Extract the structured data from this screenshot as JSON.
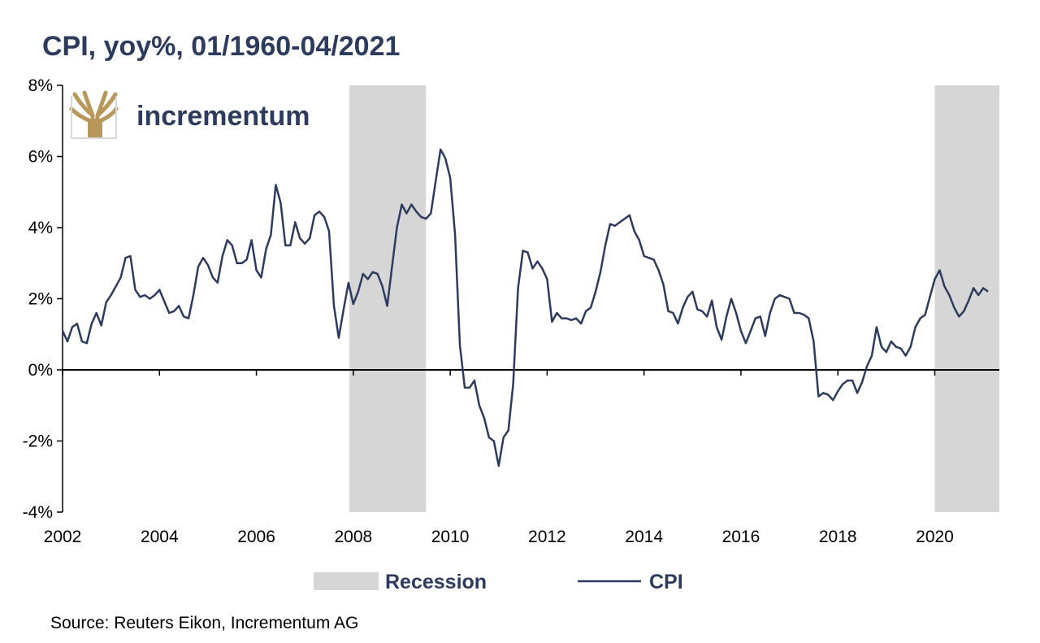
{
  "chart_data": {
    "type": "line",
    "title": "CPI, yoy%, 01/1960-04/2021",
    "xlabel": "",
    "ylabel": "",
    "xlim": [
      2002.0,
      2021.333
    ],
    "ylim": [
      -4,
      8
    ],
    "x_ticks": [
      2002,
      2004,
      2006,
      2008,
      2010,
      2012,
      2014,
      2016,
      2018,
      2020
    ],
    "y_ticks": [
      -4,
      -2,
      0,
      2,
      4,
      6,
      8
    ],
    "y_tick_labels": [
      "-4%",
      "-2%",
      "0%",
      "2%",
      "4%",
      "6%",
      "8%"
    ],
    "recessions": [
      {
        "start": 2007.917,
        "end": 2009.5
      },
      {
        "start": 2020.0,
        "end": 2021.333
      }
    ],
    "series": [
      {
        "name": "CPI",
        "color": "#2d3b5e",
        "points": [
          [
            2002.0,
            1.1
          ],
          [
            2002.1,
            0.8
          ],
          [
            2002.2,
            1.2
          ],
          [
            2002.3,
            1.3
          ],
          [
            2002.4,
            0.8
          ],
          [
            2002.5,
            0.75
          ],
          [
            2002.6,
            1.3
          ],
          [
            2002.7,
            1.6
          ],
          [
            2002.8,
            1.25
          ],
          [
            2002.9,
            1.9
          ],
          [
            2003.0,
            2.1
          ],
          [
            2003.2,
            2.6
          ],
          [
            2003.3,
            3.15
          ],
          [
            2003.4,
            3.2
          ],
          [
            2003.5,
            2.25
          ],
          [
            2003.6,
            2.05
          ],
          [
            2003.7,
            2.1
          ],
          [
            2003.8,
            2.0
          ],
          [
            2003.9,
            2.1
          ],
          [
            2004.0,
            2.25
          ],
          [
            2004.2,
            1.6
          ],
          [
            2004.3,
            1.65
          ],
          [
            2004.4,
            1.8
          ],
          [
            2004.5,
            1.5
          ],
          [
            2004.6,
            1.45
          ],
          [
            2004.7,
            2.1
          ],
          [
            2004.8,
            2.9
          ],
          [
            2004.9,
            3.15
          ],
          [
            2005.0,
            2.95
          ],
          [
            2005.1,
            2.6
          ],
          [
            2005.2,
            2.45
          ],
          [
            2005.3,
            3.2
          ],
          [
            2005.4,
            3.65
          ],
          [
            2005.5,
            3.5
          ],
          [
            2005.6,
            3.0
          ],
          [
            2005.7,
            3.0
          ],
          [
            2005.8,
            3.1
          ],
          [
            2005.9,
            3.65
          ],
          [
            2006.0,
            2.8
          ],
          [
            2006.1,
            2.6
          ],
          [
            2006.2,
            3.4
          ],
          [
            2006.3,
            3.8
          ],
          [
            2006.4,
            5.2
          ],
          [
            2006.5,
            4.7
          ],
          [
            2006.6,
            3.5
          ],
          [
            2006.7,
            3.5
          ],
          [
            2006.8,
            4.15
          ],
          [
            2006.9,
            3.7
          ],
          [
            2007.0,
            3.55
          ],
          [
            2007.1,
            3.7
          ],
          [
            2007.2,
            4.35
          ],
          [
            2007.3,
            4.45
          ],
          [
            2007.4,
            4.3
          ],
          [
            2007.5,
            3.9
          ],
          [
            2007.6,
            1.8
          ],
          [
            2007.7,
            0.9
          ],
          [
            2007.8,
            1.7
          ],
          [
            2007.9,
            2.45
          ],
          [
            2008.0,
            1.85
          ],
          [
            2008.1,
            2.2
          ],
          [
            2008.2,
            2.7
          ],
          [
            2008.3,
            2.55
          ],
          [
            2008.4,
            2.75
          ],
          [
            2008.5,
            2.7
          ],
          [
            2008.6,
            2.35
          ],
          [
            2008.7,
            1.8
          ],
          [
            2008.8,
            2.9
          ],
          [
            2008.9,
            4.0
          ],
          [
            2009.0,
            4.65
          ],
          [
            2009.1,
            4.4
          ],
          [
            2009.2,
            4.65
          ],
          [
            2009.3,
            4.45
          ],
          [
            2009.4,
            4.3
          ],
          [
            2009.5,
            4.25
          ],
          [
            2009.6,
            4.4
          ],
          [
            2009.7,
            5.3
          ],
          [
            2009.8,
            6.2
          ],
          [
            2009.9,
            5.95
          ],
          [
            2010.0,
            5.4
          ],
          [
            2010.1,
            3.8
          ],
          [
            2010.2,
            0.7
          ],
          [
            2010.3,
            -0.5
          ],
          [
            2010.4,
            -0.5
          ],
          [
            2010.5,
            -0.3
          ],
          [
            2010.6,
            -1.0
          ],
          [
            2010.7,
            -1.35
          ],
          [
            2010.8,
            -1.9
          ],
          [
            2010.9,
            -2.0
          ],
          [
            2011.0,
            -2.7
          ],
          [
            2011.1,
            -1.9
          ],
          [
            2011.2,
            -1.7
          ],
          [
            2011.3,
            -0.4
          ],
          [
            2011.4,
            2.3
          ],
          [
            2011.5,
            3.35
          ],
          [
            2011.6,
            3.3
          ],
          [
            2011.7,
            2.85
          ],
          [
            2011.8,
            3.05
          ],
          [
            2011.9,
            2.85
          ],
          [
            2012.0,
            2.55
          ],
          [
            2012.1,
            1.35
          ],
          [
            2012.2,
            1.6
          ],
          [
            2012.3,
            1.45
          ],
          [
            2012.4,
            1.45
          ],
          [
            2012.5,
            1.4
          ],
          [
            2012.6,
            1.45
          ],
          [
            2012.7,
            1.3
          ],
          [
            2012.8,
            1.65
          ],
          [
            2012.9,
            1.75
          ],
          [
            2013.0,
            2.2
          ],
          [
            2013.1,
            2.75
          ],
          [
            2013.2,
            3.5
          ],
          [
            2013.3,
            4.1
          ],
          [
            2013.4,
            4.05
          ],
          [
            2013.5,
            4.15
          ],
          [
            2013.6,
            4.25
          ],
          [
            2013.7,
            4.35
          ],
          [
            2013.8,
            3.9
          ],
          [
            2013.9,
            3.65
          ],
          [
            2014.0,
            3.2
          ],
          [
            2014.1,
            3.15
          ],
          [
            2014.2,
            3.1
          ],
          [
            2014.3,
            2.8
          ],
          [
            2014.4,
            2.4
          ],
          [
            2014.5,
            1.65
          ],
          [
            2014.6,
            1.6
          ],
          [
            2014.7,
            1.3
          ],
          [
            2014.8,
            1.75
          ],
          [
            2014.9,
            2.05
          ],
          [
            2015.0,
            2.2
          ],
          [
            2015.1,
            1.7
          ],
          [
            2015.2,
            1.65
          ],
          [
            2015.3,
            1.5
          ],
          [
            2015.4,
            1.95
          ],
          [
            2015.5,
            1.2
          ],
          [
            2015.6,
            0.85
          ],
          [
            2015.7,
            1.5
          ],
          [
            2015.8,
            2.0
          ],
          [
            2015.9,
            1.6
          ],
          [
            2016.0,
            1.1
          ],
          [
            2016.1,
            0.75
          ],
          [
            2016.2,
            1.1
          ],
          [
            2016.3,
            1.45
          ],
          [
            2016.4,
            1.5
          ],
          [
            2016.5,
            0.95
          ],
          [
            2016.6,
            1.6
          ],
          [
            2016.7,
            2.0
          ],
          [
            2016.8,
            2.1
          ],
          [
            2016.9,
            2.05
          ],
          [
            2017.0,
            2.0
          ],
          [
            2017.1,
            1.6
          ],
          [
            2017.2,
            1.6
          ],
          [
            2017.3,
            1.55
          ],
          [
            2017.4,
            1.45
          ],
          [
            2017.5,
            0.8
          ],
          [
            2017.6,
            -0.75
          ],
          [
            2017.7,
            -0.65
          ],
          [
            2017.8,
            -0.7
          ],
          [
            2017.9,
            -0.85
          ],
          [
            2018.0,
            -0.6
          ],
          [
            2018.1,
            -0.4
          ],
          [
            2018.2,
            -0.3
          ],
          [
            2018.3,
            -0.3
          ],
          [
            2018.4,
            -0.65
          ],
          [
            2018.5,
            -0.35
          ],
          [
            2018.6,
            0.1
          ],
          [
            2018.7,
            0.4
          ],
          [
            2018.8,
            1.2
          ],
          [
            2018.9,
            0.65
          ],
          [
            2019.0,
            0.5
          ],
          [
            2019.1,
            0.8
          ],
          [
            2019.2,
            0.65
          ],
          [
            2019.3,
            0.6
          ],
          [
            2019.4,
            0.4
          ],
          [
            2019.5,
            0.65
          ],
          [
            2019.6,
            1.2
          ],
          [
            2019.7,
            1.45
          ],
          [
            2019.8,
            1.55
          ],
          [
            2019.9,
            2.05
          ],
          [
            2020.0,
            2.55
          ],
          [
            2020.1,
            2.8
          ],
          [
            2020.2,
            2.35
          ],
          [
            2020.3,
            2.1
          ],
          [
            2020.4,
            1.75
          ],
          [
            2020.5,
            1.5
          ],
          [
            2020.6,
            1.65
          ],
          [
            2020.7,
            1.95
          ],
          [
            2020.8,
            2.3
          ],
          [
            2020.9,
            2.1
          ],
          [
            2021.0,
            2.3
          ],
          [
            2021.1,
            2.2
          ]
        ]
      }
    ],
    "legend": [
      "Recession",
      "CPI"
    ],
    "legend_position": "bottom-center",
    "source": "Source: Reuters Eikon, Incrementum AG",
    "brand": "incrementum"
  }
}
